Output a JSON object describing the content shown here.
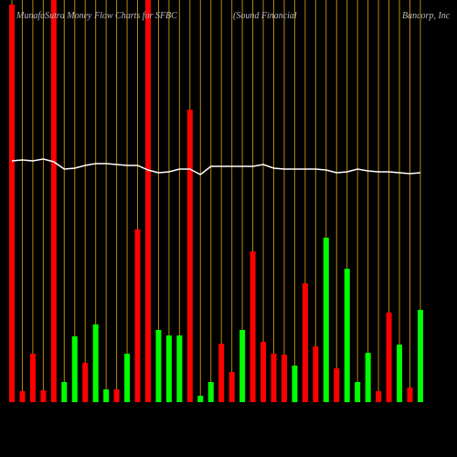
{
  "chart_data": {
    "type": "money-flow",
    "title_parts": [
      "MunafaSutra  Money Flow  Charts for SFBC",
      "(Sound Financial",
      "Bancorp, Inc"
    ],
    "categories": [
      null,
      null,
      null,
      null,
      null,
      null,
      null,
      null,
      null,
      null,
      null,
      null,
      null,
      null,
      null,
      null,
      null,
      null,
      null,
      null,
      null,
      null,
      null,
      null,
      null,
      null,
      null,
      null,
      null,
      null,
      null,
      null,
      null,
      null,
      null,
      null,
      null,
      null,
      null,
      null
    ],
    "series": [
      {
        "name": "money-flow",
        "values": [
          435,
          12,
          53,
          13,
          440,
          22,
          72,
          43,
          85,
          14,
          14,
          53,
          189,
          440,
          79,
          73,
          73,
          320,
          7,
          22,
          64,
          33,
          79,
          165,
          66,
          53,
          52,
          40,
          130,
          61,
          180,
          37,
          146,
          22,
          54,
          12,
          98,
          63,
          16,
          101
        ],
        "colors": [
          "#ff0000",
          "#ff0000",
          "#ff0000",
          "#ff0000",
          "#ff0000",
          "#00ff00",
          "#00ff00",
          "#ff0000",
          "#00ff00",
          "#00ff00",
          "#ff0000",
          "#00ff00",
          "#ff0000",
          "#ff0000",
          "#00ff00",
          "#00ff00",
          "#00ff00",
          "#ff0000",
          "#00ff00",
          "#00ff00",
          "#ff0000",
          "#ff0000",
          "#00ff00",
          "#ff0000",
          "#ff0000",
          "#ff0000",
          "#ff0000",
          "#00ff00",
          "#ff0000",
          "#ff0000",
          "#00ff00",
          "#ff0000",
          "#00ff00",
          "#00ff00",
          "#00ff00",
          "#ff0000",
          "#ff0000",
          "#00ff00",
          "#ff0000",
          "#00ff00"
        ]
      },
      {
        "name": "price",
        "color": "#ffffff",
        "values": [
          264,
          265,
          264,
          266,
          263,
          255,
          256,
          259,
          261,
          261,
          260,
          259,
          259,
          254,
          251,
          252,
          255,
          255,
          249,
          258,
          258,
          258,
          258,
          258,
          260,
          256,
          255,
          255,
          255,
          255,
          254,
          251,
          252,
          255,
          253,
          252,
          252,
          251,
          250,
          251
        ]
      }
    ],
    "grid_color": "#b8860b"
  }
}
